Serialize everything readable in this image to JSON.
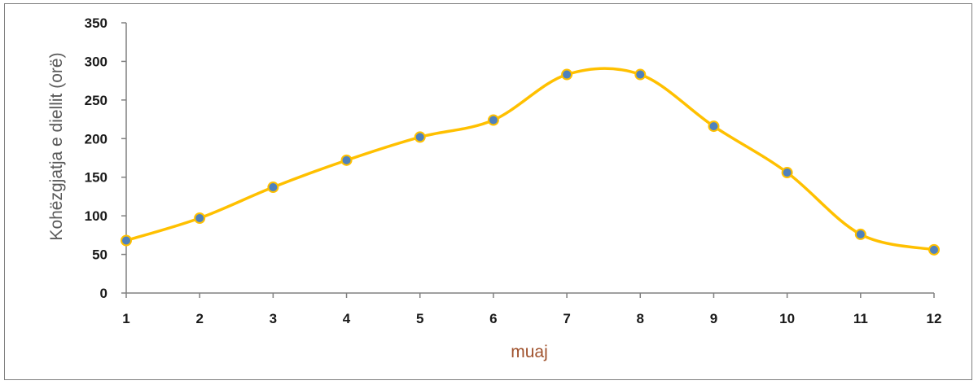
{
  "chart_data": {
    "type": "line",
    "x": [
      1,
      2,
      3,
      4,
      5,
      6,
      7,
      8,
      9,
      10,
      11,
      12
    ],
    "series": [
      {
        "values": [
          68,
          97,
          137,
          172,
          202,
          224,
          283,
          283,
          216,
          156,
          76,
          56
        ]
      }
    ],
    "xlabel": "muaj",
    "ylabel": "Kohëzgjatja e diellit (orë)",
    "ylim": [
      0,
      350
    ],
    "yticks": [
      0,
      50,
      100,
      150,
      200,
      250,
      300,
      350
    ],
    "xticks": [
      "1",
      "2",
      "3",
      "4",
      "5",
      "6",
      "7",
      "8",
      "9",
      "10",
      "11",
      "12"
    ],
    "grid": false,
    "smooth": true,
    "colors": {
      "line": "#ffc000",
      "marker_fill": "#4f81bd",
      "marker_edge": "#ffc000",
      "axis": "#808080"
    }
  }
}
